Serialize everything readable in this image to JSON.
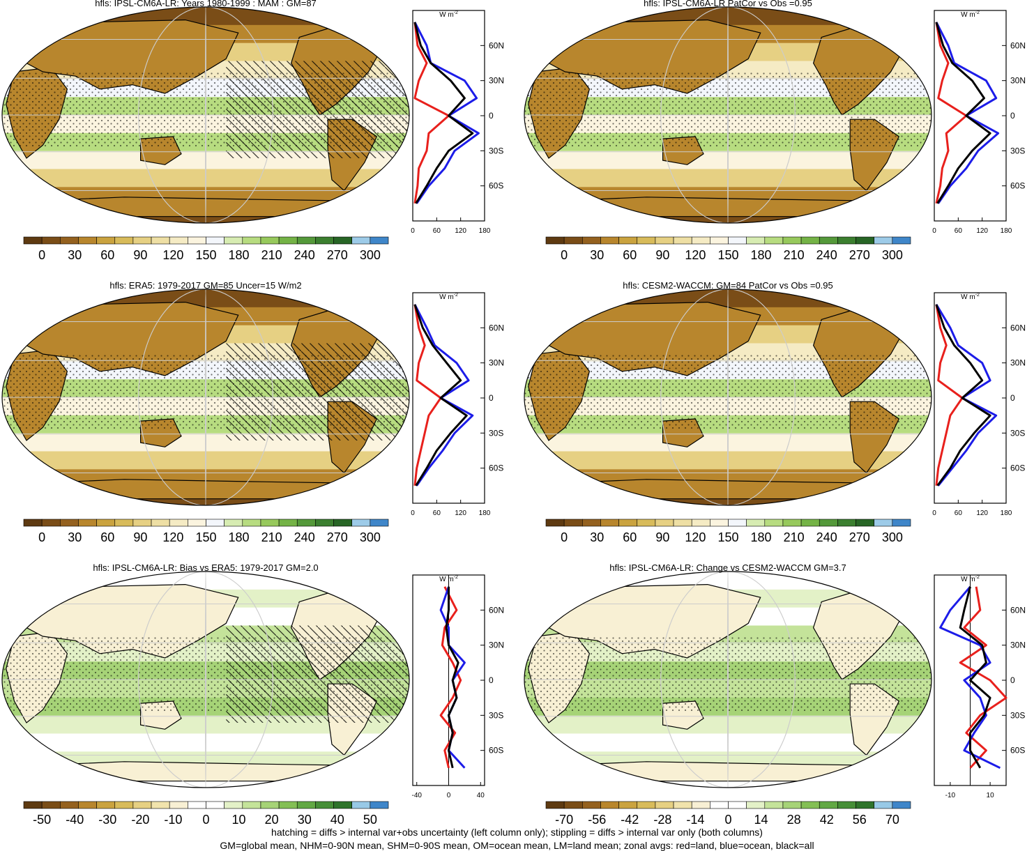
{
  "palettes": {
    "mean": [
      "#5e3a11",
      "#7a4d17",
      "#94611f",
      "#b8862d",
      "#caa33f",
      "#d8bb5a",
      "#e6d083",
      "#eedfa4",
      "#f5ebc4",
      "#fbf4df",
      "#f3f6fb",
      "#d7ecb2",
      "#b7dc80",
      "#97c95c",
      "#74b346",
      "#54993a",
      "#3b7f2f",
      "#276525",
      "#9dcbe8",
      "#3f86c9"
    ],
    "bias": [
      "#5e3a11",
      "#7a4d17",
      "#94611f",
      "#b8862d",
      "#caa33f",
      "#d8bb5a",
      "#e6d083",
      "#f1e3ac",
      "#f8f0d4",
      "#ffffff",
      "#ffffff",
      "#e3f1c7",
      "#c4e39a",
      "#a6d377",
      "#84bf55",
      "#62a844",
      "#468e37",
      "#2f732b",
      "#98c9e6",
      "#3f86c9"
    ]
  },
  "panels": [
    {
      "title": "hfls: IPSL-CM6A-LR: Years 1980-1999 : MAM : GM=87",
      "colorbar_labels": [
        "0",
        "30",
        "60",
        "90",
        "120",
        "150",
        "180",
        "210",
        "240",
        "270",
        "300"
      ],
      "palette": "mean",
      "zonal_xticks": [
        "0",
        "60",
        "120",
        "180"
      ],
      "zonal_yticks": [
        "60N",
        "30N",
        "0",
        "30S",
        "60S"
      ],
      "unit": "W m",
      "unit_sup": "-2"
    },
    {
      "title": "hfls: IPSL-CM6A-LR PatCor vs Obs =0.95",
      "colorbar_labels": [
        "0",
        "30",
        "60",
        "90",
        "120",
        "150",
        "180",
        "210",
        "240",
        "270",
        "300"
      ],
      "palette": "mean",
      "zonal_xticks": [
        "0",
        "60",
        "120",
        "180"
      ],
      "zonal_yticks": [
        "60N",
        "30N",
        "0",
        "30S",
        "60S"
      ],
      "unit": "W m",
      "unit_sup": "-2"
    },
    {
      "title": "hfls: ERA5: 1979-2017 GM=85 Uncer=15 W/m2",
      "colorbar_labels": [
        "0",
        "30",
        "60",
        "90",
        "120",
        "150",
        "180",
        "210",
        "240",
        "270",
        "300"
      ],
      "palette": "mean",
      "zonal_xticks": [
        "0",
        "60",
        "120",
        "180"
      ],
      "zonal_yticks": [
        "60N",
        "30N",
        "0",
        "30S",
        "60S"
      ],
      "unit": "W m",
      "unit_sup": "-2"
    },
    {
      "title": "hfls: CESM2-WACCM: GM=84 PatCor vs Obs =0.95",
      "colorbar_labels": [
        "0",
        "30",
        "60",
        "90",
        "120",
        "150",
        "180",
        "210",
        "240",
        "270",
        "300"
      ],
      "palette": "mean",
      "zonal_xticks": [
        "0",
        "60",
        "120",
        "180"
      ],
      "zonal_yticks": [
        "60N",
        "30N",
        "0",
        "30S",
        "60S"
      ],
      "unit": "W m",
      "unit_sup": "-2"
    },
    {
      "title": "hfls: IPSL-CM6A-LR: Bias vs ERA5: 1979-2017 GM=2.0",
      "colorbar_labels": [
        "-50",
        "-40",
        "-30",
        "-20",
        "-10",
        "0",
        "10",
        "20",
        "30",
        "40",
        "50"
      ],
      "palette": "bias",
      "zonal_xticks": [
        "-40",
        "0",
        "40"
      ],
      "zonal_yticks": [
        "60N",
        "30N",
        "0",
        "30S",
        "60S"
      ],
      "unit": "W m",
      "unit_sup": "-2"
    },
    {
      "title": "hfls: IPSL-CM6A-LR: Change vs CESM2-WACCM GM=3.7",
      "colorbar_labels": [
        "-70",
        "-56",
        "-42",
        "-28",
        "-14",
        "0",
        "14",
        "28",
        "42",
        "56",
        "70"
      ],
      "palette": "bias",
      "zonal_xticks": [
        "-10",
        "10"
      ],
      "zonal_yticks": [
        "60N",
        "30N",
        "0",
        "30S",
        "60S"
      ],
      "unit": "W m",
      "unit_sup": "-2"
    }
  ],
  "footer": {
    "line1": "hatching = diffs > internal var+obs uncertainty (left column only); stippling = diffs > internal var only (both columns)",
    "line2": "GM=global mean, NHM=0-90N mean, SHM=0-90S mean, OM=ocean mean, LM=land mean; zonal avgs: red=land, blue=ocean, black=all"
  },
  "chart_data": [
    {
      "type": "line",
      "title": "hfls: IPSL-CM6A-LR: Years 1980-1999 : MAM : GM=87",
      "y": [
        80,
        60,
        45,
        30,
        15,
        0,
        -15,
        -30,
        -45,
        -60,
        -75
      ],
      "xlim": [
        0,
        180
      ],
      "series": [
        {
          "name": "land",
          "color": "#e8201c",
          "values": [
            5,
            12,
            35,
            15,
            5,
            90,
            40,
            35,
            15,
            12,
            5
          ]
        },
        {
          "name": "ocean",
          "color": "#1c1ce8",
          "values": [
            5,
            35,
            45,
            130,
            160,
            90,
            165,
            105,
            80,
            40,
            10
          ]
        },
        {
          "name": "all",
          "color": "#000000",
          "values": [
            5,
            20,
            45,
            95,
            130,
            90,
            150,
            90,
            60,
            35,
            8
          ]
        }
      ]
    },
    {
      "type": "line",
      "title": "hfls: IPSL-CM6A-LR PatCor vs Obs =0.95",
      "y": [
        80,
        60,
        45,
        30,
        15,
        0,
        -15,
        -30,
        -45,
        -60,
        -75
      ],
      "xlim": [
        0,
        180
      ],
      "series": [
        {
          "name": "land",
          "color": "#e8201c",
          "values": [
            5,
            15,
            35,
            20,
            10,
            80,
            30,
            35,
            20,
            15,
            5
          ]
        },
        {
          "name": "ocean",
          "color": "#1c1ce8",
          "values": [
            5,
            35,
            50,
            130,
            155,
            80,
            160,
            110,
            80,
            40,
            10
          ]
        },
        {
          "name": "all",
          "color": "#000000",
          "values": [
            5,
            22,
            45,
            95,
            125,
            80,
            140,
            95,
            60,
            35,
            8
          ]
        }
      ]
    },
    {
      "type": "line",
      "title": "hfls: ERA5: 1979-2017 GM=85 Uncer=15 W/m2",
      "y": [
        80,
        60,
        45,
        30,
        15,
        0,
        -15,
        -30,
        -45,
        -60,
        -75
      ],
      "xlim": [
        0,
        180
      ],
      "series": [
        {
          "name": "land",
          "color": "#e8201c",
          "values": [
            5,
            15,
            30,
            15,
            10,
            70,
            40,
            30,
            20,
            10,
            5
          ]
        },
        {
          "name": "ocean",
          "color": "#1c1ce8",
          "values": [
            5,
            35,
            55,
            110,
            140,
            70,
            150,
            105,
            75,
            40,
            10
          ]
        },
        {
          "name": "all",
          "color": "#000000",
          "values": [
            5,
            25,
            50,
            85,
            120,
            70,
            135,
            95,
            60,
            35,
            8
          ]
        }
      ]
    },
    {
      "type": "line",
      "title": "hfls: CESM2-WACCM: GM=84 PatCor vs Obs =0.95",
      "y": [
        80,
        60,
        45,
        30,
        15,
        0,
        -15,
        -30,
        -45,
        -60,
        -75
      ],
      "xlim": [
        0,
        180
      ],
      "series": [
        {
          "name": "land",
          "color": "#e8201c",
          "values": [
            5,
            15,
            30,
            15,
            10,
            70,
            40,
            30,
            20,
            10,
            5
          ]
        },
        {
          "name": "ocean",
          "color": "#1c1ce8",
          "values": [
            5,
            40,
            60,
            120,
            140,
            70,
            155,
            110,
            80,
            45,
            10
          ]
        },
        {
          "name": "all",
          "color": "#000000",
          "values": [
            5,
            25,
            50,
            90,
            120,
            70,
            140,
            100,
            65,
            40,
            8
          ]
        }
      ]
    },
    {
      "type": "line",
      "title": "hfls: IPSL-CM6A-LR: Bias vs ERA5: 1979-2017 GM=2.0",
      "y": [
        80,
        60,
        45,
        30,
        15,
        0,
        -15,
        -30,
        -45,
        -60,
        -75
      ],
      "xlim": [
        -45,
        45
      ],
      "series": [
        {
          "name": "land",
          "color": "#e8201c",
          "values": [
            -5,
            10,
            -5,
            -8,
            5,
            15,
            5,
            -10,
            8,
            -5,
            0
          ]
        },
        {
          "name": "ocean",
          "color": "#1c1ce8",
          "values": [
            0,
            -10,
            0,
            0,
            20,
            5,
            10,
            0,
            5,
            0,
            20
          ]
        },
        {
          "name": "all",
          "color": "#000000",
          "values": [
            0,
            0,
            -3,
            0,
            12,
            5,
            10,
            0,
            5,
            0,
            5
          ]
        }
      ]
    },
    {
      "type": "line",
      "title": "hfls: IPSL-CM6A-LR: Change vs CESM2-WACCM GM=3.7",
      "y": [
        80,
        60,
        45,
        30,
        15,
        0,
        -15,
        -30,
        -45,
        -60,
        -75
      ],
      "xlim": [
        -18,
        18
      ],
      "series": [
        {
          "name": "land",
          "color": "#e8201c",
          "values": [
            3,
            5,
            -3,
            8,
            -5,
            10,
            18,
            5,
            -2,
            8,
            0
          ]
        },
        {
          "name": "ocean",
          "color": "#1c1ce8",
          "values": [
            0,
            -10,
            -15,
            5,
            10,
            -3,
            5,
            8,
            2,
            -3,
            15
          ]
        },
        {
          "name": "all",
          "color": "#000000",
          "values": [
            0,
            -3,
            -5,
            6,
            8,
            0,
            10,
            7,
            0,
            0,
            5
          ]
        }
      ]
    }
  ]
}
